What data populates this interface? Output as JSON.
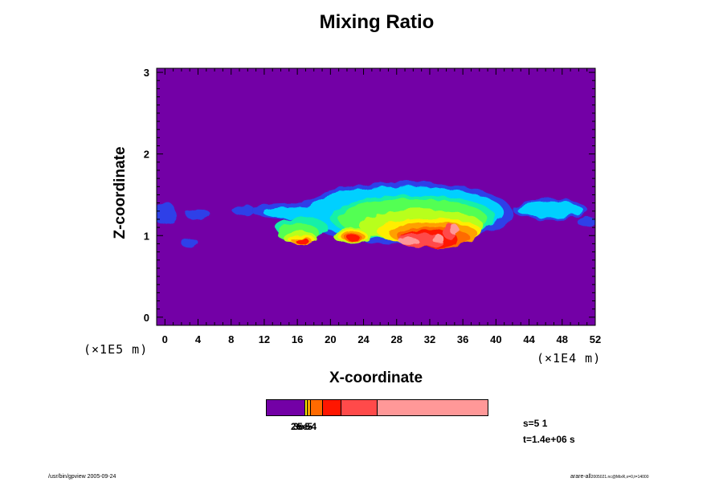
{
  "chart_data": {
    "type": "heatmap",
    "title": "Mixing Ratio",
    "xlabel": "X-coordinate",
    "ylabel": "Z-coordinate",
    "x_unit": "(×1E4 m)",
    "y_unit": "(×1E5 m)",
    "xlim": [
      -1,
      52
    ],
    "ylim": [
      -0.1,
      3.05
    ],
    "x_ticks": [
      "0",
      "4",
      "8",
      "12",
      "16",
      "20",
      "24",
      "28",
      "32",
      "36",
      "40",
      "44",
      "48",
      "52"
    ],
    "x_tick_values": [
      0,
      4,
      8,
      12,
      16,
      20,
      24,
      28,
      32,
      36,
      40,
      44,
      48,
      52
    ],
    "y_ticks": [
      "0",
      "1",
      "2",
      "3"
    ],
    "y_tick_values": [
      0,
      1,
      2,
      3
    ],
    "background_color": "#7300a6",
    "colorbar": {
      "labels": [
        "2e-5",
        "3e-5",
        "5e-4"
      ],
      "colors": [
        "#7300a6",
        "#ffee00",
        "#ffa000",
        "#ff6a00",
        "#ff1600",
        "#ff4a4a",
        "#ff9898"
      ],
      "weights": [
        17,
        1,
        1,
        5,
        8,
        16,
        50
      ]
    },
    "field_levels": [
      {
        "color": "#2d3fe8",
        "blobs": [
          [
            0,
            1.27,
            1.4,
            0.14
          ],
          [
            4,
            1.26,
            1.5,
            0.07
          ],
          [
            9.5,
            1.31,
            1.4,
            0.06
          ],
          [
            15,
            1.3,
            4.5,
            0.1
          ],
          [
            29,
            1.28,
            13,
            0.38
          ],
          [
            46.5,
            1.32,
            4.5,
            0.13
          ],
          [
            51,
            1.17,
            1.2,
            0.06
          ],
          [
            3,
            0.91,
            1.1,
            0.05
          ],
          [
            18.5,
            1.12,
            4,
            0.09
          ]
        ]
      },
      {
        "color": "#00d0ff",
        "blobs": [
          [
            29,
            1.28,
            12,
            0.32
          ],
          [
            46.5,
            1.32,
            4,
            0.1
          ],
          [
            15.5,
            1.28,
            3.6,
            0.07
          ]
        ]
      },
      {
        "color": "#12f0a8",
        "blobs": [
          [
            30,
            1.22,
            10,
            0.28
          ],
          [
            16.5,
            1.1,
            3.2,
            0.12
          ]
        ]
      },
      {
        "color": "#52ff52",
        "blobs": [
          [
            30,
            1.2,
            9,
            0.25
          ],
          [
            16,
            1.04,
            2.6,
            0.11
          ]
        ]
      },
      {
        "color": "#b8ff1e",
        "blobs": [
          [
            31,
            1.12,
            7.5,
            0.2
          ],
          [
            16.3,
            0.97,
            2,
            0.08
          ],
          [
            22.5,
            1.0,
            2.2,
            0.1
          ]
        ]
      },
      {
        "color": "#ffee00",
        "blobs": [
          [
            32,
            1.05,
            6.3,
            0.17
          ],
          [
            16.5,
            0.95,
            1.6,
            0.06
          ],
          [
            22.6,
            1.0,
            1.8,
            0.08
          ]
        ]
      },
      {
        "color": "#ffa000",
        "blobs": [
          [
            32.5,
            1.02,
            5.3,
            0.15
          ],
          [
            16.6,
            0.93,
            1.2,
            0.05
          ],
          [
            22.7,
            0.99,
            1.4,
            0.07
          ]
        ]
      },
      {
        "color": "#ff6a00",
        "blobs": [
          [
            32.5,
            0.98,
            4.3,
            0.13
          ],
          [
            22.7,
            0.98,
            1.0,
            0.06
          ]
        ]
      },
      {
        "color": "#ff1600",
        "blobs": [
          [
            32,
            0.96,
            3.4,
            0.11
          ],
          [
            16.6,
            0.93,
            0.8,
            0.04
          ],
          [
            22.7,
            0.98,
            0.7,
            0.05
          ]
        ]
      },
      {
        "color": "#ff4a4a",
        "blobs": [
          [
            31,
            0.94,
            2.6,
            0.09
          ],
          [
            34.5,
            1.04,
            0.8,
            0.1
          ]
        ]
      },
      {
        "color": "#ff9898",
        "blobs": [
          [
            29.5,
            0.93,
            1.2,
            0.04
          ],
          [
            33,
            0.96,
            0.8,
            0.04
          ],
          [
            35,
            1.07,
            0.45,
            0.07
          ]
        ]
      }
    ]
  },
  "info": {
    "s_label": "s=5 1",
    "t_label": "t=1.4e+06 s"
  },
  "footer": {
    "left": "/usr/bin/gpview 2005-09-24",
    "right_main": "arare-all",
    "right_small": "2005021.nc@MixR,x=0,t=14000"
  }
}
